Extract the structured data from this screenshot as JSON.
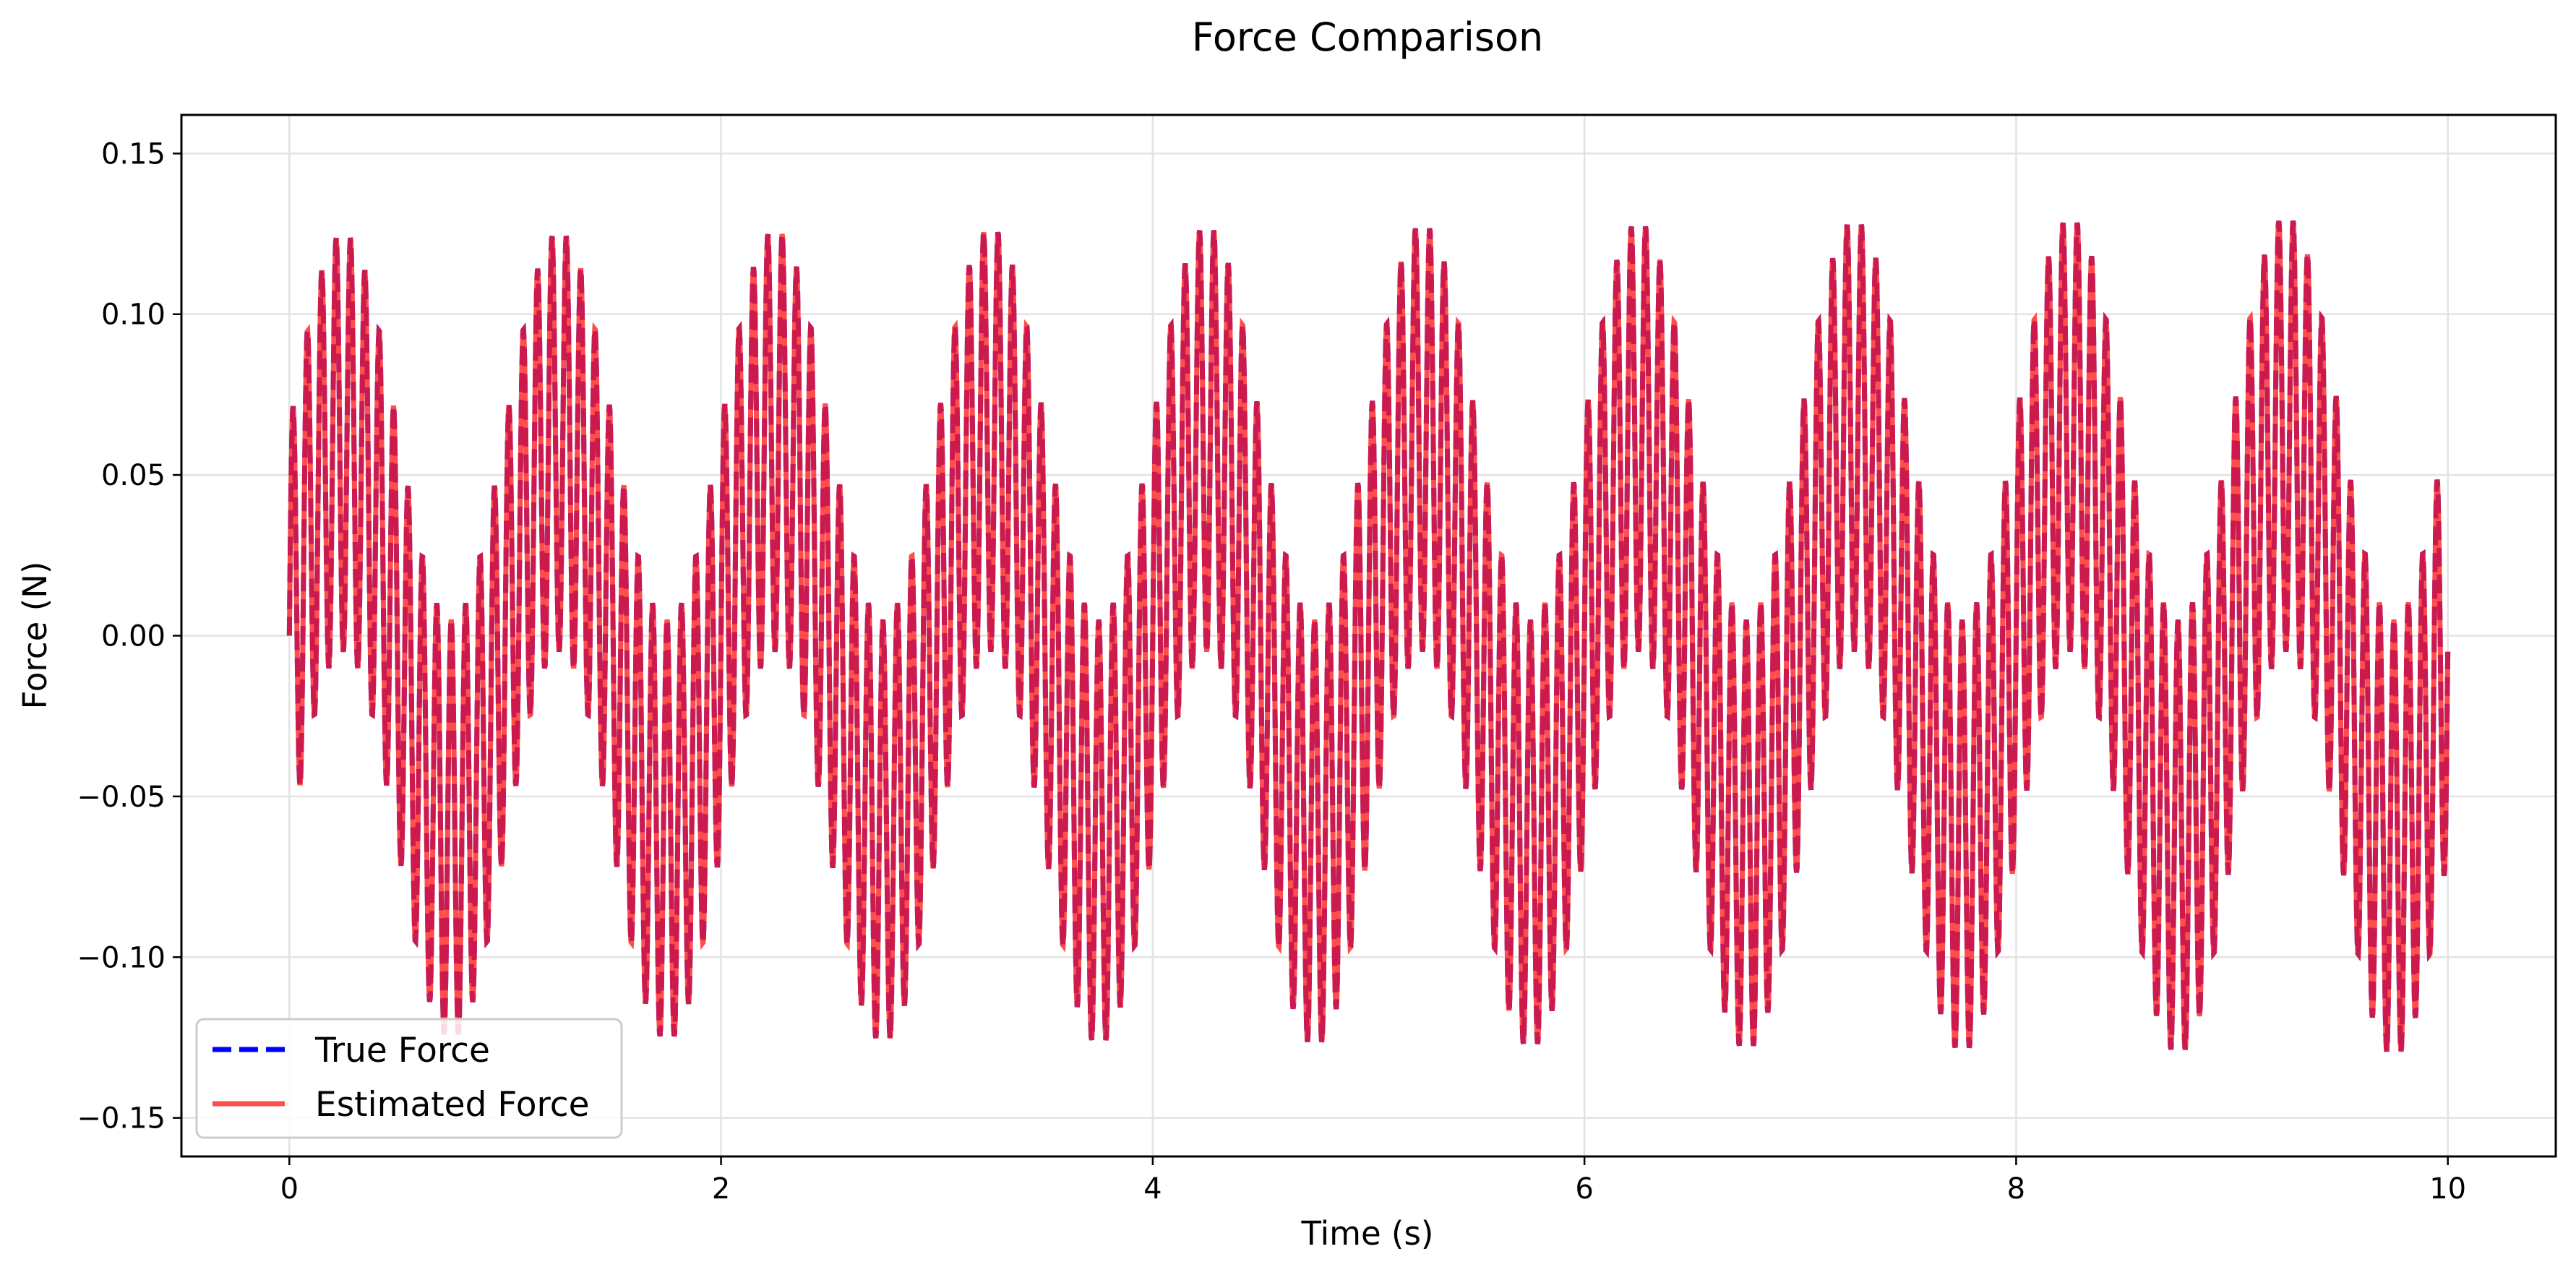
{
  "chart_data": {
    "type": "line",
    "title": "Force Comparison",
    "xlabel": "Time (s)",
    "ylabel": "Force (N)",
    "xlim": [
      -0.5,
      10.5
    ],
    "ylim": [
      -0.162,
      0.162
    ],
    "x_ticks": [
      0,
      2,
      4,
      6,
      8,
      10
    ],
    "x_tick_labels": [
      "0",
      "2",
      "4",
      "6",
      "8",
      "10"
    ],
    "y_ticks": [
      0.15,
      0.1,
      0.05,
      0.0,
      -0.05,
      -0.1,
      -0.15
    ],
    "y_tick_labels": [
      "0.15",
      "0.10",
      "0.05",
      "0.00",
      "−0.05",
      "−0.10",
      "−0.15"
    ],
    "grid": true,
    "legend_position": "lower-left",
    "signal_model": {
      "t_start": 0,
      "t_end": 10,
      "components": [
        {
          "amplitude": 0.06,
          "frequency_hz": 1.0,
          "slope_per_s": 0.0003
        },
        {
          "amplitude": 0.065,
          "frequency_hz": 15.0,
          "slope_per_s": 0.0003
        }
      ],
      "end_value": -0.005
    },
    "series": [
      {
        "name": "True Force",
        "color": "#0000ff",
        "style": "dashed"
      },
      {
        "name": "Estimated Force",
        "color": "#ff2020",
        "style": "solid",
        "alpha": 0.8
      }
    ]
  }
}
